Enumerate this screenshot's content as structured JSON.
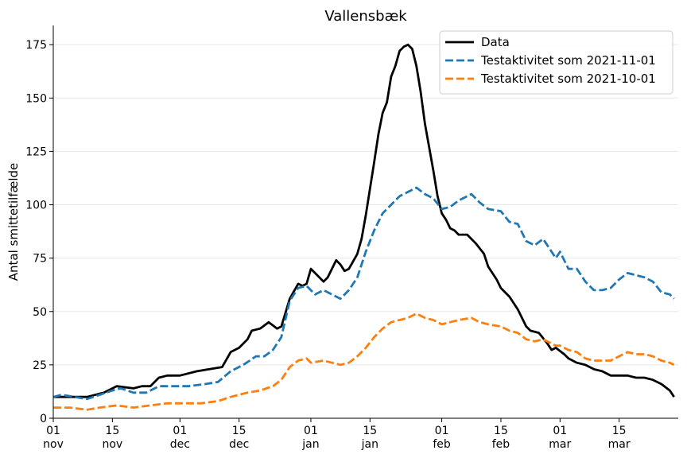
{
  "chart_data": {
    "type": "line",
    "title": "Vallensbæk",
    "xlabel": "",
    "ylabel": "Antal smittetilfælde",
    "x_range": [
      "2021-11-01",
      "2022-03-29"
    ],
    "ylim": [
      0,
      184
    ],
    "grid": "horizontal",
    "legend_position": "top-right",
    "y_ticks": [
      0,
      25,
      50,
      75,
      100,
      125,
      150,
      175
    ],
    "x_ticks": [
      {
        "date": "2021-11-01",
        "day": "01",
        "month": "nov"
      },
      {
        "date": "2021-11-15",
        "day": "15",
        "month": "nov"
      },
      {
        "date": "2021-12-01",
        "day": "01",
        "month": "dec"
      },
      {
        "date": "2021-12-15",
        "day": "15",
        "month": "dec"
      },
      {
        "date": "2022-01-01",
        "day": "01",
        "month": "jan"
      },
      {
        "date": "2022-01-15",
        "day": "15",
        "month": "jan"
      },
      {
        "date": "2022-02-01",
        "day": "01",
        "month": "feb"
      },
      {
        "date": "2022-02-15",
        "day": "15",
        "month": "feb"
      },
      {
        "date": "2022-03-01",
        "day": "01",
        "month": "mar"
      },
      {
        "date": "2022-03-15",
        "day": "15",
        "month": "mar"
      }
    ],
    "series": [
      {
        "name": "Data",
        "color": "#000000",
        "style": "solid",
        "points": [
          [
            "2021-11-01",
            10
          ],
          [
            "2021-11-05",
            10
          ],
          [
            "2021-11-09",
            10
          ],
          [
            "2021-11-13",
            12
          ],
          [
            "2021-11-16",
            15
          ],
          [
            "2021-11-20",
            14
          ],
          [
            "2021-11-22",
            15
          ],
          [
            "2021-11-24",
            15
          ],
          [
            "2021-11-26",
            19
          ],
          [
            "2021-11-28",
            20
          ],
          [
            "2021-12-01",
            20
          ],
          [
            "2021-12-05",
            22
          ],
          [
            "2021-12-08",
            23
          ],
          [
            "2021-12-11",
            24
          ],
          [
            "2021-12-13",
            31
          ],
          [
            "2021-12-15",
            33
          ],
          [
            "2021-12-17",
            37
          ],
          [
            "2021-12-18",
            41
          ],
          [
            "2021-12-20",
            42
          ],
          [
            "2021-12-22",
            45
          ],
          [
            "2021-12-24",
            42
          ],
          [
            "2021-12-25",
            43
          ],
          [
            "2021-12-27",
            56
          ],
          [
            "2021-12-29",
            63
          ],
          [
            "2021-12-30",
            62
          ],
          [
            "2021-12-31",
            63
          ],
          [
            "2022-01-01",
            70
          ],
          [
            "2022-01-02",
            68
          ],
          [
            "2022-01-04",
            64
          ],
          [
            "2022-01-05",
            66
          ],
          [
            "2022-01-07",
            74
          ],
          [
            "2022-01-08",
            72
          ],
          [
            "2022-01-09",
            69
          ],
          [
            "2022-01-10",
            70
          ],
          [
            "2022-01-12",
            77
          ],
          [
            "2022-01-13",
            84
          ],
          [
            "2022-01-14",
            95
          ],
          [
            "2022-01-16",
            120
          ],
          [
            "2022-01-17",
            133
          ],
          [
            "2022-01-18",
            143
          ],
          [
            "2022-01-19",
            148
          ],
          [
            "2022-01-20",
            160
          ],
          [
            "2022-01-21",
            165
          ],
          [
            "2022-01-22",
            172
          ],
          [
            "2022-01-23",
            174
          ],
          [
            "2022-01-24",
            175
          ],
          [
            "2022-01-25",
            173
          ],
          [
            "2022-01-26",
            165
          ],
          [
            "2022-01-27",
            153
          ],
          [
            "2022-01-28",
            138
          ],
          [
            "2022-01-30",
            116
          ],
          [
            "2022-01-31",
            104
          ],
          [
            "2022-02-01",
            96
          ],
          [
            "2022-02-02",
            93
          ],
          [
            "2022-02-03",
            89
          ],
          [
            "2022-02-04",
            88
          ],
          [
            "2022-02-05",
            86
          ],
          [
            "2022-02-07",
            86
          ],
          [
            "2022-02-09",
            82
          ],
          [
            "2022-02-11",
            77
          ],
          [
            "2022-02-12",
            71
          ],
          [
            "2022-02-14",
            65
          ],
          [
            "2022-02-15",
            61
          ],
          [
            "2022-02-17",
            57
          ],
          [
            "2022-02-19",
            51
          ],
          [
            "2022-02-21",
            43
          ],
          [
            "2022-02-22",
            41
          ],
          [
            "2022-02-24",
            40
          ],
          [
            "2022-02-26",
            35
          ],
          [
            "2022-02-27",
            32
          ],
          [
            "2022-02-28",
            33
          ],
          [
            "2022-03-02",
            30
          ],
          [
            "2022-03-03",
            28
          ],
          [
            "2022-03-05",
            26
          ],
          [
            "2022-03-07",
            25
          ],
          [
            "2022-03-09",
            23
          ],
          [
            "2022-03-11",
            22
          ],
          [
            "2022-03-13",
            20
          ],
          [
            "2022-03-15",
            20
          ],
          [
            "2022-03-17",
            20
          ],
          [
            "2022-03-19",
            19
          ],
          [
            "2022-03-21",
            19
          ],
          [
            "2022-03-23",
            18
          ],
          [
            "2022-03-25",
            16
          ],
          [
            "2022-03-27",
            13
          ],
          [
            "2022-03-28",
            10
          ]
        ]
      },
      {
        "name": "Testaktivitet som 2021-11-01",
        "color": "#1f77b4",
        "style": "dashed",
        "points": [
          [
            "2021-11-01",
            10
          ],
          [
            "2021-11-03",
            11
          ],
          [
            "2021-11-06",
            10
          ],
          [
            "2021-11-09",
            9
          ],
          [
            "2021-11-12",
            11
          ],
          [
            "2021-11-15",
            13
          ],
          [
            "2021-11-17",
            14
          ],
          [
            "2021-11-20",
            12
          ],
          [
            "2021-11-23",
            12
          ],
          [
            "2021-11-26",
            15
          ],
          [
            "2021-11-30",
            15
          ],
          [
            "2021-12-03",
            15
          ],
          [
            "2021-12-07",
            16
          ],
          [
            "2021-12-10",
            17
          ],
          [
            "2021-12-13",
            22
          ],
          [
            "2021-12-16",
            25
          ],
          [
            "2021-12-19",
            29
          ],
          [
            "2021-12-21",
            29
          ],
          [
            "2021-12-23",
            32
          ],
          [
            "2021-12-25",
            38
          ],
          [
            "2021-12-27",
            55
          ],
          [
            "2021-12-29",
            61
          ],
          [
            "2021-12-31",
            62
          ],
          [
            "2022-01-02",
            58
          ],
          [
            "2022-01-04",
            60
          ],
          [
            "2022-01-06",
            58
          ],
          [
            "2022-01-08",
            56
          ],
          [
            "2022-01-10",
            60
          ],
          [
            "2022-01-12",
            66
          ],
          [
            "2022-01-14",
            78
          ],
          [
            "2022-01-16",
            88
          ],
          [
            "2022-01-18",
            96
          ],
          [
            "2022-01-20",
            100
          ],
          [
            "2022-01-22",
            104
          ],
          [
            "2022-01-24",
            106
          ],
          [
            "2022-01-26",
            108
          ],
          [
            "2022-01-28",
            105
          ],
          [
            "2022-01-30",
            103
          ],
          [
            "2022-02-01",
            98
          ],
          [
            "2022-02-03",
            99
          ],
          [
            "2022-02-05",
            102
          ],
          [
            "2022-02-07",
            104
          ],
          [
            "2022-02-08",
            105
          ],
          [
            "2022-02-10",
            101
          ],
          [
            "2022-02-12",
            98
          ],
          [
            "2022-02-15",
            97
          ],
          [
            "2022-02-17",
            92
          ],
          [
            "2022-02-19",
            91
          ],
          [
            "2022-02-21",
            83
          ],
          [
            "2022-02-23",
            81
          ],
          [
            "2022-02-25",
            84
          ],
          [
            "2022-02-28",
            75
          ],
          [
            "2022-03-01",
            78
          ],
          [
            "2022-03-03",
            70
          ],
          [
            "2022-03-05",
            70
          ],
          [
            "2022-03-07",
            64
          ],
          [
            "2022-03-09",
            60
          ],
          [
            "2022-03-11",
            60
          ],
          [
            "2022-03-13",
            61
          ],
          [
            "2022-03-15",
            65
          ],
          [
            "2022-03-17",
            68
          ],
          [
            "2022-03-19",
            67
          ],
          [
            "2022-03-21",
            66
          ],
          [
            "2022-03-23",
            64
          ],
          [
            "2022-03-25",
            59
          ],
          [
            "2022-03-27",
            58
          ],
          [
            "2022-03-28",
            56
          ]
        ]
      },
      {
        "name": "Testaktivitet som 2021-10-01",
        "color": "#ff7f0e",
        "style": "dashed",
        "points": [
          [
            "2021-11-01",
            5
          ],
          [
            "2021-11-05",
            5
          ],
          [
            "2021-11-09",
            4
          ],
          [
            "2021-11-12",
            5
          ],
          [
            "2021-11-16",
            6
          ],
          [
            "2021-11-20",
            5
          ],
          [
            "2021-11-24",
            6
          ],
          [
            "2021-11-28",
            7
          ],
          [
            "2021-12-02",
            7
          ],
          [
            "2021-12-06",
            7
          ],
          [
            "2021-12-10",
            8
          ],
          [
            "2021-12-13",
            10
          ],
          [
            "2021-12-17",
            12
          ],
          [
            "2021-12-20",
            13
          ],
          [
            "2021-12-23",
            15
          ],
          [
            "2021-12-25",
            18
          ],
          [
            "2021-12-27",
            24
          ],
          [
            "2021-12-29",
            27
          ],
          [
            "2021-12-31",
            28
          ],
          [
            "2022-01-01",
            26
          ],
          [
            "2022-01-04",
            27
          ],
          [
            "2022-01-06",
            26
          ],
          [
            "2022-01-08",
            25
          ],
          [
            "2022-01-10",
            26
          ],
          [
            "2022-01-12",
            29
          ],
          [
            "2022-01-14",
            33
          ],
          [
            "2022-01-16",
            38
          ],
          [
            "2022-01-18",
            42
          ],
          [
            "2022-01-20",
            45
          ],
          [
            "2022-01-22",
            46
          ],
          [
            "2022-01-24",
            47
          ],
          [
            "2022-01-26",
            49
          ],
          [
            "2022-01-28",
            47
          ],
          [
            "2022-01-30",
            46
          ],
          [
            "2022-02-01",
            44
          ],
          [
            "2022-02-03",
            45
          ],
          [
            "2022-02-05",
            46
          ],
          [
            "2022-02-08",
            47
          ],
          [
            "2022-02-10",
            45
          ],
          [
            "2022-02-12",
            44
          ],
          [
            "2022-02-15",
            43
          ],
          [
            "2022-02-17",
            41
          ],
          [
            "2022-02-19",
            40
          ],
          [
            "2022-02-21",
            37
          ],
          [
            "2022-02-23",
            36
          ],
          [
            "2022-02-25",
            37
          ],
          [
            "2022-02-28",
            34
          ],
          [
            "2022-03-01",
            34
          ],
          [
            "2022-03-03",
            32
          ],
          [
            "2022-03-05",
            31
          ],
          [
            "2022-03-07",
            28
          ],
          [
            "2022-03-09",
            27
          ],
          [
            "2022-03-11",
            27
          ],
          [
            "2022-03-13",
            27
          ],
          [
            "2022-03-15",
            29
          ],
          [
            "2022-03-17",
            31
          ],
          [
            "2022-03-19",
            30
          ],
          [
            "2022-03-21",
            30
          ],
          [
            "2022-03-23",
            29
          ],
          [
            "2022-03-25",
            27
          ],
          [
            "2022-03-27",
            26
          ],
          [
            "2022-03-28",
            25
          ]
        ]
      }
    ]
  }
}
